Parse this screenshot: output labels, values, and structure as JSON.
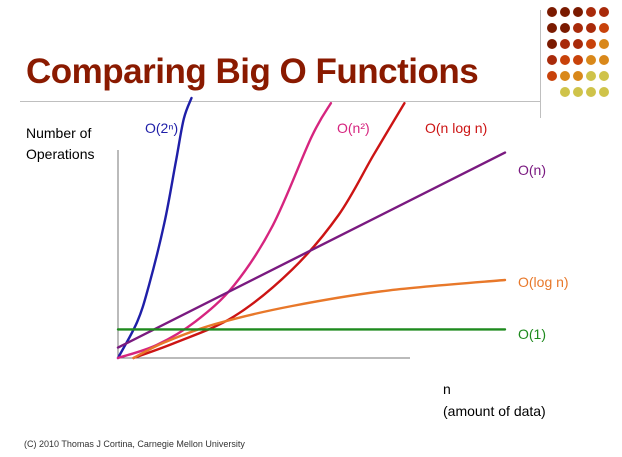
{
  "slide": {
    "title": "Comparing Big O Functions",
    "footer": "(C) 2010 Thomas J Cortina, Carnegie Mellon University",
    "title_color": "#8a1a00"
  },
  "chart_data": {
    "type": "line",
    "title": "Comparing Big O Functions",
    "ylabel_lines": [
      "Number of",
      "Operations"
    ],
    "xlabel_lines": [
      "n",
      "(amount of data)"
    ],
    "xlim": [
      0,
      1
    ],
    "ylim": [
      0,
      1
    ],
    "grid": false,
    "series": [
      {
        "id": "exp",
        "name": "O(2ⁿ)",
        "color": "#1f1fa8",
        "x": [
          0,
          0.05,
          0.08,
          0.12,
          0.15,
          0.17,
          0.19
        ],
        "y": [
          0,
          0.14,
          0.28,
          0.52,
          0.76,
          0.92,
          1.0
        ]
      },
      {
        "id": "quad",
        "name": "O(n²)",
        "color": "#d6257f",
        "x": [
          0,
          0.1,
          0.2,
          0.3,
          0.4,
          0.5,
          0.55
        ],
        "y": [
          0,
          0.05,
          0.14,
          0.28,
          0.51,
          0.85,
          0.98
        ]
      },
      {
        "id": "nlogn",
        "name": "O(n log n)",
        "color": "#cc1414",
        "x": [
          0.04,
          0.15,
          0.3,
          0.45,
          0.57,
          0.66,
          0.74
        ],
        "y": [
          0,
          0.06,
          0.16,
          0.34,
          0.55,
          0.78,
          0.98
        ]
      },
      {
        "id": "linear",
        "name": "O(n)",
        "color": "#7a1a80",
        "x": [
          0,
          1.0
        ],
        "y": [
          0.04,
          0.79
        ]
      },
      {
        "id": "log",
        "name": "O(log n)",
        "color": "#e8782a",
        "x": [
          0.04,
          0.12,
          0.25,
          0.45,
          0.7,
          1.0
        ],
        "y": [
          0,
          0.06,
          0.13,
          0.2,
          0.26,
          0.3
        ]
      },
      {
        "id": "const",
        "name": "O(1)",
        "color": "#1e8a1e",
        "x": [
          0,
          1.0
        ],
        "y": [
          0.11,
          0.11
        ]
      }
    ]
  }
}
